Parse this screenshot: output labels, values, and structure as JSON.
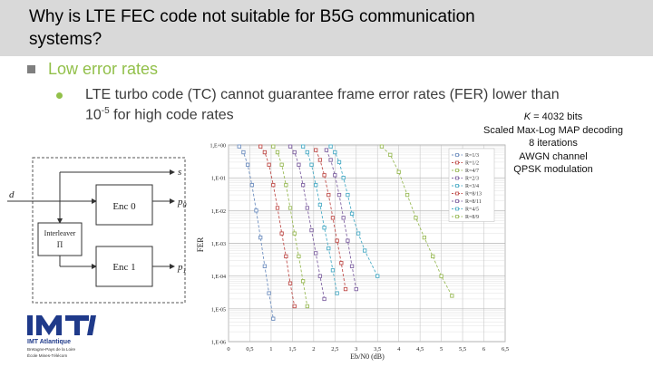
{
  "slide": {
    "title_line1": "Why is LTE FEC code not suitable for B5G communication",
    "title_line2": "systems?",
    "bullet1": "Low error rates",
    "bullet2_line1": "LTE turbo code (TC) cannot guarantee frame error rates (FER) lower than",
    "bullet2_line2_pre": "10",
    "bullet2_exp": "-5",
    "bullet2_line2_post": " for high code rates"
  },
  "params": {
    "k_label": "K",
    "k_value": " = 4032 bits",
    "line2": "Scaled Max-Log MAP decoding",
    "line3": "8 iterations",
    "line4": "AWGN channel",
    "line5": "QPSK modulation"
  },
  "encoder": {
    "input": "d",
    "out_s": "s",
    "out_p0": "p",
    "out_p0_sub": "0",
    "out_p1": "p",
    "out_p1_sub": "1",
    "enc0": "Enc 0",
    "enc1": "Enc 1",
    "interleaver_line1": "Interleaver",
    "interleaver_line2": "Π"
  },
  "logo": {
    "name": "IMT Atlantique",
    "sub1": "Bretagne-Pays de la Loire",
    "sub2": "École Mines-Télécom"
  },
  "colors": {
    "accent_green": "#92c04a",
    "title_bg": "#d9d9d9",
    "logo_blue": "#1f3a8a"
  },
  "chart_data": {
    "type": "line",
    "xlabel": "Eb/N0 (dB)",
    "ylabel": "FER",
    "xlim": [
      0,
      6.5
    ],
    "ylog": true,
    "ylim": [
      1e-06,
      1
    ],
    "grid": true,
    "legend_position": "top-right",
    "x_ticks": [
      "0",
      "0,5",
      "1",
      "1,5",
      "2",
      "2,5",
      "3",
      "3,5",
      "4",
      "4,5",
      "5",
      "5,5",
      "6",
      "6,5"
    ],
    "y_ticks": [
      "1,E+00",
      "1,E-01",
      "1,E-02",
      "1,E-03",
      "1,E-04",
      "1,E-05",
      "1,E-06"
    ],
    "series": [
      {
        "name": "R=1/3",
        "color": "#7090c0",
        "x": [
          0.25,
          0.35,
          0.45,
          0.55,
          0.65,
          0.75,
          0.85,
          0.95,
          1.05
        ],
        "y": [
          0.9,
          0.6,
          0.25,
          0.06,
          0.01,
          0.0015,
          0.0002,
          3e-05,
          5e-06
        ]
      },
      {
        "name": "R=1/2",
        "color": "#c0504d",
        "x": [
          0.75,
          0.85,
          0.95,
          1.05,
          1.15,
          1.25,
          1.35,
          1.45,
          1.55
        ],
        "y": [
          0.9,
          0.6,
          0.25,
          0.06,
          0.012,
          0.002,
          0.0004,
          6e-05,
          1.2e-05
        ]
      },
      {
        "name": "R=4/7",
        "color": "#9bbb59",
        "x": [
          1.05,
          1.15,
          1.25,
          1.35,
          1.45,
          1.55,
          1.65,
          1.75,
          1.85
        ],
        "y": [
          0.9,
          0.6,
          0.25,
          0.06,
          0.012,
          0.002,
          0.0004,
          7e-05,
          1.2e-05
        ]
      },
      {
        "name": "R=2/3",
        "color": "#8064a2",
        "x": [
          1.45,
          1.55,
          1.65,
          1.75,
          1.85,
          1.95,
          2.05,
          2.15,
          2.25
        ],
        "y": [
          0.9,
          0.6,
          0.25,
          0.06,
          0.012,
          0.0025,
          0.0005,
          0.0001,
          2e-05
        ]
      },
      {
        "name": "R=3/4",
        "color": "#4bacc6",
        "x": [
          1.75,
          1.85,
          1.95,
          2.05,
          2.15,
          2.25,
          2.35,
          2.45,
          2.55
        ],
        "y": [
          0.9,
          0.6,
          0.25,
          0.06,
          0.015,
          0.003,
          0.0007,
          0.00015,
          3e-05
        ]
      },
      {
        "name": "R=8/13",
        "color": "#c0504d",
        "x": [
          2.05,
          2.15,
          2.25,
          2.35,
          2.45,
          2.55,
          2.65,
          2.75
        ],
        "y": [
          0.7,
          0.35,
          0.12,
          0.03,
          0.006,
          0.0012,
          0.00025,
          4e-05
        ]
      },
      {
        "name": "R=8/11",
        "color": "#8064a2",
        "x": [
          2.3,
          2.4,
          2.5,
          2.6,
          2.7,
          2.8,
          2.9,
          3.0
        ],
        "y": [
          0.7,
          0.35,
          0.12,
          0.03,
          0.006,
          0.0012,
          0.0002,
          4e-05
        ]
      },
      {
        "name": "R=4/5",
        "color": "#4bacc6",
        "x": [
          2.4,
          2.5,
          2.6,
          2.7,
          2.8,
          2.9,
          3.05,
          3.2,
          3.5
        ],
        "y": [
          0.9,
          0.6,
          0.3,
          0.1,
          0.03,
          0.008,
          0.002,
          0.0006,
          0.0001
        ]
      },
      {
        "name": "R=8/9",
        "color": "#9bbb59",
        "x": [
          3.6,
          3.8,
          4.0,
          4.2,
          4.4,
          4.6,
          4.8,
          5.0,
          5.25
        ],
        "y": [
          0.9,
          0.5,
          0.15,
          0.03,
          0.006,
          0.0015,
          0.0004,
          0.0001,
          2.5e-05
        ]
      }
    ]
  }
}
